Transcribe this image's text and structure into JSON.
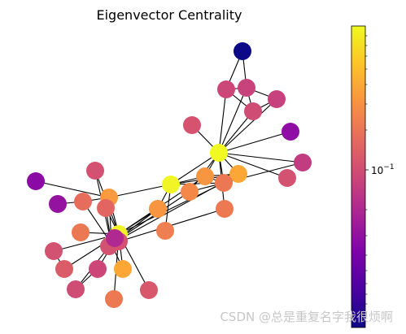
{
  "chart_data": {
    "type": "network-graph",
    "title": "Eigenvector Centrality",
    "colormap": "plasma",
    "colorbar": {
      "scale": "log",
      "tick_labels": [
        {
          "text": "10",
          "exponent": "−1"
        }
      ]
    },
    "nodes": [
      {
        "id": 0,
        "color": "#0d0887"
      },
      {
        "id": 1,
        "color": "#cc4778"
      },
      {
        "id": 2,
        "color": "#c8437b"
      },
      {
        "id": 3,
        "color": "#cf4c74"
      },
      {
        "id": 4,
        "color": "#c6417d"
      },
      {
        "id": 5,
        "color": "#d5536f"
      },
      {
        "id": 6,
        "color": "#8f0da4"
      },
      {
        "id": 7,
        "color": "#f0f921"
      },
      {
        "id": 8,
        "color": "#c23c81"
      },
      {
        "id": 9,
        "color": "#d35171"
      },
      {
        "id": 10,
        "color": "#fca636"
      },
      {
        "id": 11,
        "color": "#f89540"
      },
      {
        "id": 12,
        "color": "#ec7853"
      },
      {
        "id": 13,
        "color": "#f48849"
      },
      {
        "id": 14,
        "color": "#f1f525"
      },
      {
        "id": 15,
        "color": "#f89540"
      },
      {
        "id": 16,
        "color": "#ed7953"
      },
      {
        "id": 17,
        "color": "#ef7e50"
      },
      {
        "id": 18,
        "color": "#d35171"
      },
      {
        "id": 19,
        "color": "#8b0aa5"
      },
      {
        "id": 20,
        "color": "#9512a1"
      },
      {
        "id": 21,
        "color": "#e66c5c"
      },
      {
        "id": 22,
        "color": "#f99a3e"
      },
      {
        "id": 23,
        "color": "#e26561"
      },
      {
        "id": 24,
        "color": "#ec7853"
      },
      {
        "id": 25,
        "color": "#fca636"
      },
      {
        "id": 26,
        "color": "#f1f525"
      },
      {
        "id": 27,
        "color": "#f0f921"
      },
      {
        "id": 28,
        "color": "#d35171"
      },
      {
        "id": 29,
        "color": "#db5c68"
      },
      {
        "id": 30,
        "color": "#cf4c74"
      },
      {
        "id": 31,
        "color": "#cc4778"
      },
      {
        "id": 32,
        "color": "#ed7953"
      },
      {
        "id": 33,
        "color": "#d8576b"
      },
      {
        "id": 34,
        "color": "#d35171"
      },
      {
        "id": 35,
        "color": "#d35171"
      },
      {
        "id": 36,
        "color": "#b02991"
      }
    ],
    "edges": [
      [
        0,
        1
      ],
      [
        0,
        2
      ],
      [
        1,
        2
      ],
      [
        1,
        3
      ],
      [
        2,
        3
      ],
      [
        2,
        4
      ],
      [
        3,
        4
      ],
      [
        1,
        7
      ],
      [
        2,
        7
      ],
      [
        3,
        7
      ],
      [
        4,
        7
      ],
      [
        5,
        7
      ],
      [
        6,
        7
      ],
      [
        7,
        8
      ],
      [
        7,
        9
      ],
      [
        7,
        10
      ],
      [
        7,
        11
      ],
      [
        7,
        12
      ],
      [
        7,
        13
      ],
      [
        7,
        14
      ],
      [
        7,
        16
      ],
      [
        8,
        12
      ],
      [
        10,
        11
      ],
      [
        10,
        14
      ],
      [
        11,
        14
      ],
      [
        11,
        12
      ],
      [
        12,
        13
      ],
      [
        12,
        14
      ],
      [
        14,
        15
      ],
      [
        14,
        17
      ],
      [
        14,
        22
      ],
      [
        13,
        27
      ],
      [
        10,
        27
      ],
      [
        15,
        27
      ],
      [
        16,
        27
      ],
      [
        12,
        26
      ],
      [
        11,
        26
      ],
      [
        15,
        26
      ],
      [
        18,
        26
      ],
      [
        18,
        27
      ],
      [
        19,
        22
      ],
      [
        20,
        21
      ],
      [
        21,
        22
      ],
      [
        21,
        27
      ],
      [
        22,
        26
      ],
      [
        22,
        27
      ],
      [
        23,
        26
      ],
      [
        23,
        27
      ],
      [
        24,
        26
      ],
      [
        25,
        26
      ],
      [
        25,
        27
      ],
      [
        26,
        27
      ],
      [
        26,
        28
      ],
      [
        26,
        29
      ],
      [
        26,
        30
      ],
      [
        26,
        31
      ],
      [
        26,
        32
      ],
      [
        26,
        33
      ],
      [
        26,
        34
      ],
      [
        27,
        35
      ],
      [
        27,
        36
      ],
      [
        28,
        29
      ],
      [
        30,
        31
      ]
    ]
  },
  "watermark": "CSDN @总是重复名字我很烦啊"
}
